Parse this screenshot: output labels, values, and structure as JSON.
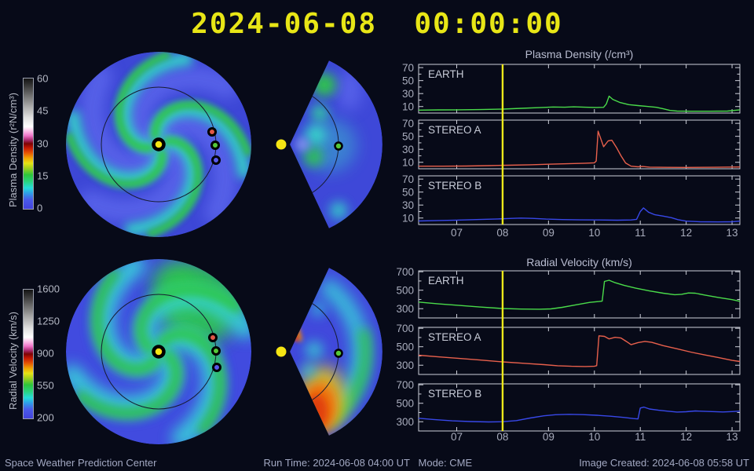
{
  "page_title": "2024-06-08  00:00:00",
  "colors": {
    "background": "#070a18",
    "title_yellow": "#e8e616",
    "axis_text": "#a8acbc",
    "chart_title_text": "#b8bcd0",
    "panel_border": "#cdd0da",
    "station_label": "#c8ccd8",
    "now_line": "#ece81a",
    "earth_line": "#4adb4a",
    "stereo_a_line": "#e8604c",
    "stereo_b_line": "#3848e8",
    "sun": "#f5e513",
    "earth_marker": "#55c838",
    "stereo_a_marker": "#e05848",
    "stereo_b_marker": "#5959ea",
    "footer_text": "#a2a8c2"
  },
  "colorbars": [
    {
      "id": "density",
      "label": "Plasma Density (r²N/cm³)",
      "ticks": [
        "60",
        "45",
        "30",
        "15",
        "0"
      ]
    },
    {
      "id": "velocity",
      "label": "Radial Velocity (km/s)",
      "ticks": [
        "1600",
        "1250",
        "900",
        "550",
        "200"
      ]
    }
  ],
  "chart_data": [
    {
      "type": "line",
      "title": "Plasma Density (/cm³)",
      "x_domain": [
        6.17,
        13.17
      ],
      "x_ticks": [
        7,
        8,
        9,
        10,
        11,
        12,
        13
      ],
      "x_tick_labels": [
        "07",
        "08",
        "09",
        "10",
        "11",
        "12",
        "13"
      ],
      "y_domain": [
        0,
        75
      ],
      "y_ticks": [
        10,
        30,
        50,
        70
      ],
      "y_minor_step": 10,
      "now_x": 8,
      "legend_position": "inside-top-left",
      "grid": false,
      "series": [
        {
          "name": "EARTH",
          "color": "#4adb4a",
          "points": [
            [
              6.17,
              4.5
            ],
            [
              6.6,
              4.8
            ],
            [
              7.0,
              5.0
            ],
            [
              7.5,
              5.3
            ],
            [
              8.0,
              6.0
            ],
            [
              8.4,
              7.2
            ],
            [
              8.8,
              8.3
            ],
            [
              9.1,
              9.3
            ],
            [
              9.35,
              9.0
            ],
            [
              9.55,
              9.6
            ],
            [
              9.8,
              9.0
            ],
            [
              10.05,
              8.6
            ],
            [
              10.2,
              8.8
            ],
            [
              10.26,
              14
            ],
            [
              10.32,
              26
            ],
            [
              10.4,
              21
            ],
            [
              10.55,
              16.5
            ],
            [
              10.75,
              13
            ],
            [
              10.95,
              11.5
            ],
            [
              11.15,
              10.2
            ],
            [
              11.35,
              8.8
            ],
            [
              11.5,
              6.5
            ],
            [
              11.65,
              4.0
            ],
            [
              11.8,
              3.0
            ],
            [
              12.1,
              2.8
            ],
            [
              12.5,
              2.8
            ],
            [
              12.9,
              3.0
            ],
            [
              13.17,
              5.0
            ]
          ]
        },
        {
          "name": "STEREO A",
          "color": "#e8604c",
          "points": [
            [
              6.17,
              4.0
            ],
            [
              6.7,
              4.0
            ],
            [
              7.2,
              4.2
            ],
            [
              7.7,
              4.8
            ],
            [
              8.1,
              5.5
            ],
            [
              8.6,
              6.2
            ],
            [
              9.0,
              7.0
            ],
            [
              9.4,
              7.8
            ],
            [
              9.8,
              8.6
            ],
            [
              10.0,
              9.2
            ],
            [
              10.04,
              12
            ],
            [
              10.08,
              58
            ],
            [
              10.13,
              48
            ],
            [
              10.2,
              34
            ],
            [
              10.3,
              43
            ],
            [
              10.38,
              44
            ],
            [
              10.48,
              33
            ],
            [
              10.58,
              20
            ],
            [
              10.68,
              9
            ],
            [
              10.8,
              4
            ],
            [
              10.95,
              3
            ],
            [
              11.05,
              3.5
            ],
            [
              11.2,
              2.5
            ],
            [
              11.6,
              2.2
            ],
            [
              12.0,
              2.0
            ],
            [
              12.6,
              2.3
            ],
            [
              13.17,
              2.8
            ]
          ]
        },
        {
          "name": "STEREO B",
          "color": "#3848e8",
          "points": [
            [
              6.17,
              5.5
            ],
            [
              6.6,
              6.2
            ],
            [
              7.0,
              6.8
            ],
            [
              7.5,
              7.8
            ],
            [
              7.9,
              8.6
            ],
            [
              8.2,
              9.4
            ],
            [
              8.4,
              9.9
            ],
            [
              8.65,
              9.4
            ],
            [
              8.95,
              8.4
            ],
            [
              9.3,
              7.6
            ],
            [
              9.7,
              7.1
            ],
            [
              10.1,
              7.0
            ],
            [
              10.5,
              6.6
            ],
            [
              10.8,
              7.0
            ],
            [
              10.92,
              8.0
            ],
            [
              11.0,
              20
            ],
            [
              11.07,
              25.5
            ],
            [
              11.18,
              19
            ],
            [
              11.32,
              15
            ],
            [
              11.5,
              13
            ],
            [
              11.68,
              10.5
            ],
            [
              11.82,
              7.5
            ],
            [
              12.0,
              5.2
            ],
            [
              12.3,
              4.2
            ],
            [
              12.7,
              4.0
            ],
            [
              13.0,
              4.2
            ],
            [
              13.17,
              5.2
            ]
          ]
        }
      ]
    },
    {
      "type": "line",
      "title": "Radial Velocity (km/s)",
      "x_domain": [
        6.17,
        13.17
      ],
      "x_ticks": [
        7,
        8,
        9,
        10,
        11,
        12,
        13
      ],
      "x_tick_labels": [
        "07",
        "08",
        "09",
        "10",
        "11",
        "12",
        "13"
      ],
      "y_domain": [
        200,
        710
      ],
      "y_ticks": [
        300,
        500,
        700
      ],
      "y_minor_step": 100,
      "now_x": 8,
      "legend_position": "inside-top-left",
      "grid": false,
      "series": [
        {
          "name": "EARTH",
          "color": "#4adb4a",
          "points": [
            [
              6.17,
              372
            ],
            [
              6.6,
              352
            ],
            [
              7.0,
              338
            ],
            [
              7.5,
              318
            ],
            [
              8.0,
              302
            ],
            [
              8.4,
              296
            ],
            [
              8.8,
              294
            ],
            [
              9.05,
              298
            ],
            [
              9.3,
              315
            ],
            [
              9.6,
              342
            ],
            [
              9.9,
              368
            ],
            [
              10.1,
              378
            ],
            [
              10.17,
              382
            ],
            [
              10.22,
              595
            ],
            [
              10.32,
              608
            ],
            [
              10.45,
              582
            ],
            [
              10.65,
              552
            ],
            [
              10.9,
              522
            ],
            [
              11.2,
              492
            ],
            [
              11.5,
              468
            ],
            [
              11.75,
              452
            ],
            [
              11.9,
              456
            ],
            [
              12.05,
              470
            ],
            [
              12.2,
              468
            ],
            [
              12.4,
              448
            ],
            [
              12.7,
              422
            ],
            [
              13.0,
              398
            ],
            [
              13.17,
              380
            ]
          ]
        },
        {
          "name": "STEREO A",
          "color": "#e8604c",
          "points": [
            [
              6.17,
              408
            ],
            [
              6.6,
              390
            ],
            [
              7.0,
              376
            ],
            [
              7.5,
              356
            ],
            [
              8.0,
              336
            ],
            [
              8.5,
              320
            ],
            [
              8.9,
              306
            ],
            [
              9.2,
              294
            ],
            [
              9.5,
              288
            ],
            [
              9.8,
              286
            ],
            [
              10.0,
              288
            ],
            [
              10.05,
              295
            ],
            [
              10.1,
              618
            ],
            [
              10.22,
              612
            ],
            [
              10.32,
              585
            ],
            [
              10.45,
              602
            ],
            [
              10.58,
              594
            ],
            [
              10.7,
              556
            ],
            [
              10.8,
              522
            ],
            [
              10.95,
              545
            ],
            [
              11.1,
              558
            ],
            [
              11.25,
              548
            ],
            [
              11.5,
              512
            ],
            [
              11.8,
              478
            ],
            [
              12.1,
              442
            ],
            [
              12.4,
              412
            ],
            [
              12.7,
              384
            ],
            [
              13.0,
              352
            ],
            [
              13.17,
              340
            ]
          ]
        },
        {
          "name": "STEREO B",
          "color": "#3848e8",
          "points": [
            [
              6.17,
              338
            ],
            [
              6.5,
              324
            ],
            [
              6.9,
              310
            ],
            [
              7.3,
              302
            ],
            [
              7.7,
              298
            ],
            [
              8.0,
              300
            ],
            [
              8.3,
              312
            ],
            [
              8.6,
              340
            ],
            [
              8.9,
              364
            ],
            [
              9.15,
              376
            ],
            [
              9.45,
              380
            ],
            [
              9.75,
              377
            ],
            [
              10.05,
              370
            ],
            [
              10.35,
              360
            ],
            [
              10.65,
              346
            ],
            [
              10.85,
              334
            ],
            [
              10.95,
              330
            ],
            [
              11.0,
              448
            ],
            [
              11.08,
              458
            ],
            [
              11.2,
              438
            ],
            [
              11.4,
              424
            ],
            [
              11.6,
              414
            ],
            [
              11.8,
              405
            ],
            [
              12.0,
              408
            ],
            [
              12.2,
              417
            ],
            [
              12.5,
              411
            ],
            [
              12.8,
              406
            ],
            [
              13.0,
              410
            ],
            [
              13.17,
              415
            ]
          ]
        }
      ]
    }
  ],
  "footer": {
    "left": "Space Weather Prediction Center",
    "center": "Run Time: 2024-06-08 04:00 UT   Mode: CME",
    "right": "Image Created: 2024-06-08 05:58 UT"
  }
}
